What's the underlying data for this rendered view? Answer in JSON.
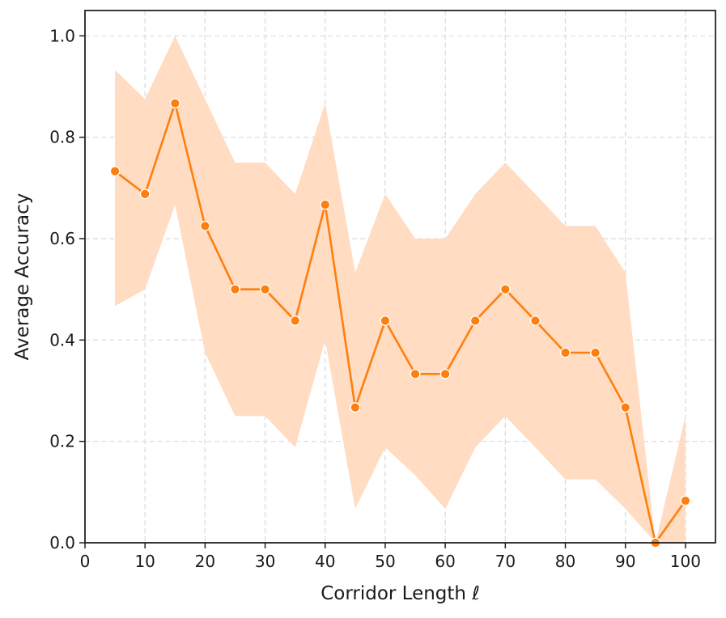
{
  "chart_data": {
    "type": "line",
    "title": "",
    "xlabel": "Corridor Length ℓ",
    "ylabel": "Average Accuracy",
    "xlim": [
      0,
      105
    ],
    "ylim": [
      0.0,
      1.05
    ],
    "grid": true,
    "x_ticks": [
      0,
      10,
      20,
      30,
      40,
      50,
      60,
      70,
      80,
      90,
      100
    ],
    "y_ticks": [
      0.0,
      0.2,
      0.4,
      0.6,
      0.8,
      1.0
    ],
    "x_tick_labels": [
      "0",
      "10",
      "20",
      "30",
      "40",
      "50",
      "60",
      "70",
      "80",
      "90",
      "100"
    ],
    "y_tick_labels": [
      "0.0",
      "0.2",
      "0.4",
      "0.6",
      "0.8",
      "1.0"
    ],
    "series": [
      {
        "x": [
          5,
          10,
          15,
          20,
          25,
          30,
          35,
          40,
          45,
          50,
          55,
          60,
          65,
          70,
          75,
          80,
          85,
          90,
          95,
          100
        ],
        "values": [
          0.733,
          0.688,
          0.867,
          0.625,
          0.5,
          0.5,
          0.438,
          0.667,
          0.267,
          0.438,
          0.333,
          0.333,
          0.438,
          0.5,
          0.438,
          0.375,
          0.375,
          0.267,
          0.0,
          0.083
        ],
        "lower": [
          0.467,
          0.5,
          0.667,
          0.375,
          0.25,
          0.25,
          0.188,
          0.4,
          0.067,
          0.188,
          0.133,
          0.067,
          0.188,
          0.25,
          0.188,
          0.125,
          0.125,
          0.067,
          0.0,
          0.0
        ],
        "upper": [
          0.933,
          0.875,
          1.0,
          0.875,
          0.75,
          0.75,
          0.688,
          0.867,
          0.533,
          0.688,
          0.6,
          0.6,
          0.688,
          0.75,
          0.688,
          0.625,
          0.625,
          0.533,
          0.0,
          0.25
        ]
      }
    ],
    "colors": {
      "line": "#ff7f0e",
      "band": "#ffdcc2",
      "marker_edge": "#ffffff"
    }
  }
}
